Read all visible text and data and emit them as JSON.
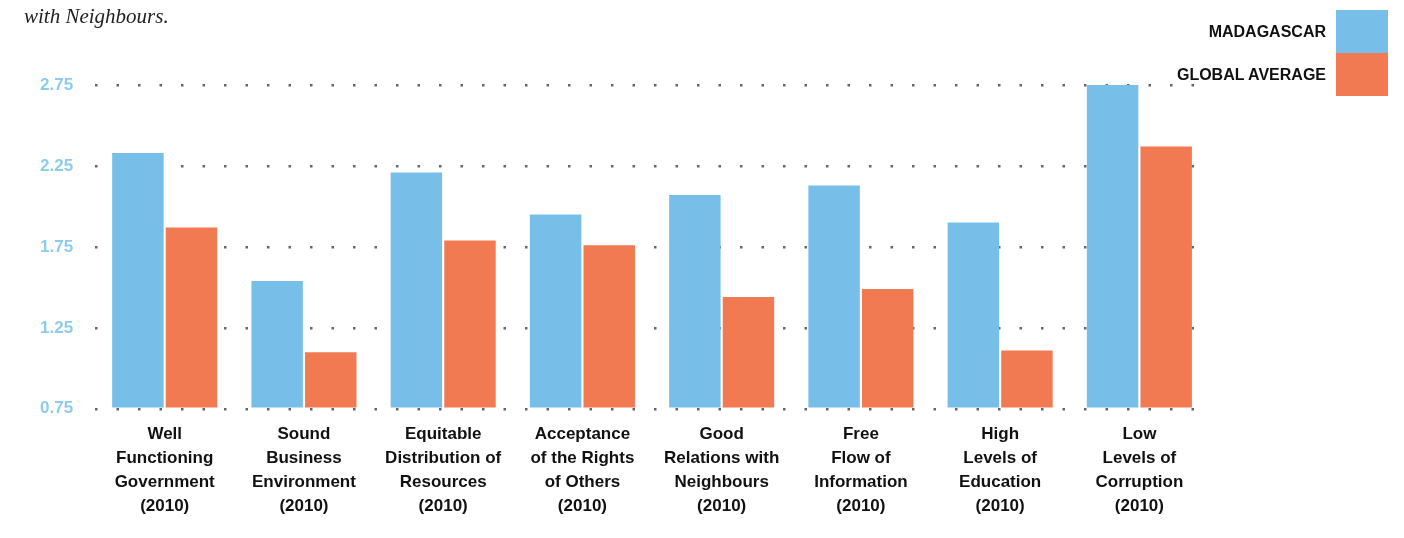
{
  "chart_data": {
    "type": "bar",
    "title": "with Neighbours.",
    "categories": [
      "Well\nFunctioning\nGovernment\n(2010)",
      "Sound\nBusiness\nEnvironment\n(2010)",
      "Equitable\nDistribution of\nResources\n(2010)",
      "Acceptance\nof the Rights\nof Others\n(2010)",
      "Good\nRelations with\nNeighbours\n(2010)",
      "Free\nFlow of\nInformation\n(2010)",
      "High\nLevels of\nEducation\n(2010)",
      "Low\nLevels of\nCorruption\n(2010)"
    ],
    "series": [
      {
        "name": "MADAGASCAR",
        "color": "#77bee9",
        "values": [
          2.33,
          1.54,
          2.21,
          1.95,
          2.07,
          2.13,
          1.9,
          2.75
        ]
      },
      {
        "name": "GLOBAL AVERAGE",
        "color": "#f27a52",
        "values": [
          1.87,
          1.1,
          1.79,
          1.76,
          1.44,
          1.49,
          1.11,
          2.37
        ]
      }
    ],
    "ylim": [
      0.75,
      2.75
    ],
    "yticks": [
      {
        "value": 0.75,
        "label": "0.75"
      },
      {
        "value": 1.25,
        "label": "1.25"
      },
      {
        "value": 1.75,
        "label": "1.75"
      },
      {
        "value": 2.25,
        "label": "2.25"
      },
      {
        "value": 2.75,
        "label": "2.75"
      }
    ],
    "grid": "y",
    "legend": "top right"
  }
}
